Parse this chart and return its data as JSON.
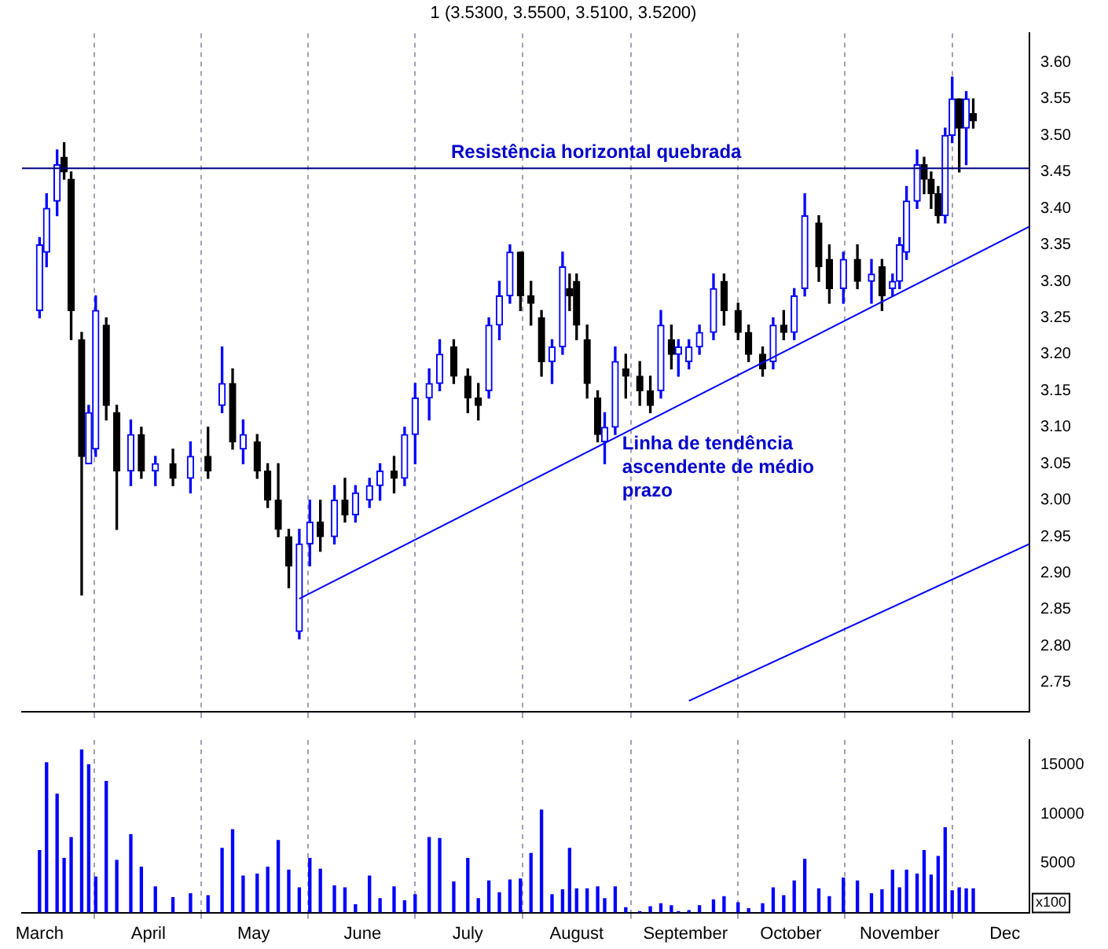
{
  "chart_data": [
    {
      "type": "candlestick",
      "title": "1 (3.5300, 3.5500, 3.5100, 3.5200)",
      "x": [
        "--03-01",
        "--03-03",
        "--03-06",
        "--03-08",
        "--03-10",
        "--03-13",
        "--03-15",
        "--03-17",
        "--03-20",
        "--03-23",
        "--03-27",
        "--03-30",
        "--04-03",
        "--04-08",
        "--04-13",
        "--04-18",
        "--04-22",
        "--04-25",
        "--04-28",
        "--05-02",
        "--05-05",
        "--05-08",
        "--05-11",
        "--05-14",
        "--05-17",
        "--05-20",
        "--05-24",
        "--05-27",
        "--05-30",
        "--06-03",
        "--06-06",
        "--06-10",
        "--06-13",
        "--06-16",
        "--06-20",
        "--06-23",
        "--06-27",
        "--07-01",
        "--07-04",
        "--07-07",
        "--07-10",
        "--07-13",
        "--07-16",
        "--07-19",
        "--07-22",
        "--07-25",
        "--07-28",
        "--07-30",
        "--08-01",
        "--08-04",
        "--08-07",
        "--08-09",
        "--08-12",
        "--08-15",
        "--08-19",
        "--08-22",
        "--08-25",
        "--08-28",
        "--08-30",
        "--09-02",
        "--09-05",
        "--09-09",
        "--09-12",
        "--09-16",
        "--09-19",
        "--09-23",
        "--09-26",
        "--09-29",
        "--10-02",
        "--10-05",
        "--10-09",
        "--10-12",
        "--10-16",
        "--10-20",
        "--10-24",
        "--10-27",
        "--10-30",
        "--11-01",
        "--11-03",
        "--11-06",
        "--11-08",
        "--11-10",
        "--11-12",
        "--11-14",
        "--11-16",
        "--11-18",
        "--11-20",
        "--11-22"
      ],
      "ohlc": [
        [
          3.26,
          3.36,
          3.25,
          3.35
        ],
        [
          3.34,
          3.42,
          3.32,
          3.4
        ],
        [
          3.41,
          3.48,
          3.39,
          3.46
        ],
        [
          3.47,
          3.49,
          3.44,
          3.45
        ],
        [
          3.44,
          3.45,
          3.22,
          3.26
        ],
        [
          3.22,
          3.23,
          2.87,
          3.06
        ],
        [
          3.05,
          3.13,
          3.05,
          3.12
        ],
        [
          3.07,
          3.28,
          3.06,
          3.26
        ],
        [
          3.24,
          3.25,
          3.11,
          3.13
        ],
        [
          3.12,
          3.13,
          2.96,
          3.04
        ],
        [
          3.04,
          3.11,
          3.02,
          3.09
        ],
        [
          3.09,
          3.1,
          3.03,
          3.04
        ],
        [
          3.04,
          3.06,
          3.02,
          3.05
        ],
        [
          3.05,
          3.07,
          3.02,
          3.03
        ],
        [
          3.03,
          3.08,
          3.01,
          3.06
        ],
        [
          3.06,
          3.1,
          3.03,
          3.04
        ],
        [
          3.13,
          3.21,
          3.12,
          3.16
        ],
        [
          3.16,
          3.18,
          3.07,
          3.08
        ],
        [
          3.07,
          3.11,
          3.05,
          3.09
        ],
        [
          3.08,
          3.09,
          3.03,
          3.04
        ],
        [
          3.04,
          3.05,
          2.99,
          3.0
        ],
        [
          3.0,
          3.05,
          2.95,
          2.96
        ],
        [
          2.95,
          2.96,
          2.88,
          2.91
        ],
        [
          2.82,
          2.96,
          2.81,
          2.94
        ],
        [
          2.94,
          3.0,
          2.91,
          2.97
        ],
        [
          2.97,
          3.0,
          2.93,
          2.95
        ],
        [
          2.95,
          3.02,
          2.94,
          3.0
        ],
        [
          3.0,
          3.03,
          2.97,
          2.98
        ],
        [
          2.98,
          3.02,
          2.97,
          3.01
        ],
        [
          3.0,
          3.03,
          2.99,
          3.02
        ],
        [
          3.02,
          3.05,
          3.0,
          3.04
        ],
        [
          3.04,
          3.06,
          3.01,
          3.03
        ],
        [
          3.03,
          3.1,
          3.02,
          3.09
        ],
        [
          3.09,
          3.16,
          3.05,
          3.14
        ],
        [
          3.14,
          3.18,
          3.11,
          3.16
        ],
        [
          3.16,
          3.22,
          3.15,
          3.2
        ],
        [
          3.21,
          3.22,
          3.16,
          3.17
        ],
        [
          3.17,
          3.18,
          3.12,
          3.14
        ],
        [
          3.14,
          3.16,
          3.11,
          3.13
        ],
        [
          3.15,
          3.25,
          3.14,
          3.24
        ],
        [
          3.24,
          3.3,
          3.22,
          3.28
        ],
        [
          3.28,
          3.35,
          3.27,
          3.34
        ],
        [
          3.34,
          3.34,
          3.26,
          3.28
        ],
        [
          3.28,
          3.3,
          3.24,
          3.27
        ],
        [
          3.25,
          3.26,
          3.17,
          3.19
        ],
        [
          3.19,
          3.22,
          3.16,
          3.21
        ],
        [
          3.21,
          3.34,
          3.2,
          3.32
        ],
        [
          3.29,
          3.31,
          3.26,
          3.28
        ],
        [
          3.3,
          3.31,
          3.22,
          3.24
        ],
        [
          3.22,
          3.24,
          3.14,
          3.16
        ],
        [
          3.14,
          3.15,
          3.08,
          3.09
        ],
        [
          3.08,
          3.12,
          3.05,
          3.1
        ],
        [
          3.1,
          3.21,
          3.09,
          3.19
        ],
        [
          3.18,
          3.2,
          3.14,
          3.17
        ],
        [
          3.17,
          3.19,
          3.13,
          3.15
        ],
        [
          3.15,
          3.17,
          3.12,
          3.13
        ],
        [
          3.15,
          3.26,
          3.14,
          3.24
        ],
        [
          3.22,
          3.24,
          3.18,
          3.2
        ],
        [
          3.2,
          3.22,
          3.17,
          3.21
        ],
        [
          3.19,
          3.22,
          3.18,
          3.21
        ],
        [
          3.21,
          3.24,
          3.2,
          3.23
        ],
        [
          3.23,
          3.31,
          3.22,
          3.29
        ],
        [
          3.3,
          3.31,
          3.24,
          3.26
        ],
        [
          3.26,
          3.27,
          3.22,
          3.23
        ],
        [
          3.23,
          3.24,
          3.19,
          3.2
        ],
        [
          3.2,
          3.21,
          3.17,
          3.18
        ],
        [
          3.19,
          3.25,
          3.18,
          3.24
        ],
        [
          3.24,
          3.26,
          3.22,
          3.23
        ],
        [
          3.23,
          3.29,
          3.22,
          3.28
        ],
        [
          3.29,
          3.42,
          3.28,
          3.39
        ],
        [
          3.38,
          3.39,
          3.3,
          3.32
        ],
        [
          3.33,
          3.35,
          3.27,
          3.29
        ],
        [
          3.29,
          3.34,
          3.27,
          3.33
        ],
        [
          3.33,
          3.35,
          3.29,
          3.3
        ],
        [
          3.3,
          3.33,
          3.27,
          3.31
        ],
        [
          3.32,
          3.33,
          3.26,
          3.28
        ],
        [
          3.29,
          3.31,
          3.28,
          3.3
        ],
        [
          3.3,
          3.36,
          3.29,
          3.35
        ],
        [
          3.34,
          3.43,
          3.33,
          3.41
        ],
        [
          3.41,
          3.48,
          3.4,
          3.46
        ],
        [
          3.46,
          3.47,
          3.42,
          3.44
        ],
        [
          3.44,
          3.45,
          3.4,
          3.42
        ],
        [
          3.42,
          3.43,
          3.38,
          3.39
        ],
        [
          3.39,
          3.51,
          3.38,
          3.5
        ],
        [
          3.5,
          3.58,
          3.49,
          3.55
        ],
        [
          3.55,
          3.55,
          3.45,
          3.51
        ],
        [
          3.51,
          3.56,
          3.46,
          3.55
        ],
        [
          3.53,
          3.55,
          3.51,
          3.52
        ]
      ],
      "colors": [
        "#0000ff",
        "#0000ff",
        "#0000ff",
        "#000000",
        "#000000",
        "#000000",
        "#0000ff",
        "#0000ff",
        "#000000",
        "#000000",
        "#0000ff",
        "#000000",
        "#0000ff",
        "#000000",
        "#0000ff",
        "#000000",
        "#0000ff",
        "#000000",
        "#0000ff",
        "#000000",
        "#000000",
        "#000000",
        "#000000",
        "#0000ff",
        "#0000ff",
        "#000000",
        "#0000ff",
        "#000000",
        "#0000ff",
        "#0000ff",
        "#0000ff",
        "#000000",
        "#0000ff",
        "#0000ff",
        "#0000ff",
        "#0000ff",
        "#000000",
        "#000000",
        "#000000",
        "#0000ff",
        "#0000ff",
        "#0000ff",
        "#000000",
        "#000000",
        "#000000",
        "#0000ff",
        "#0000ff",
        "#000000",
        "#000000",
        "#000000",
        "#000000",
        "#0000ff",
        "#0000ff",
        "#000000",
        "#000000",
        "#000000",
        "#0000ff",
        "#000000",
        "#0000ff",
        "#0000ff",
        "#0000ff",
        "#0000ff",
        "#000000",
        "#000000",
        "#000000",
        "#000000",
        "#0000ff",
        "#000000",
        "#0000ff",
        "#0000ff",
        "#000000",
        "#000000",
        "#0000ff",
        "#000000",
        "#0000ff",
        "#000000",
        "#0000ff",
        "#0000ff",
        "#0000ff",
        "#0000ff",
        "#000000",
        "#000000",
        "#000000",
        "#0000ff",
        "#0000ff",
        "#000000",
        "#0000ff",
        "#000000"
      ],
      "series": [
        {
          "type": "line",
          "color": "#0000ff",
          "x": [
            "--05-14",
            "--12-08"
          ],
          "values": [
            2.865,
            3.375
          ]
        },
        {
          "type": "line",
          "color": "#0000ff",
          "x": [
            "--09-02",
            "--12-08"
          ],
          "values": [
            2.725,
            2.94
          ]
        }
      ],
      "ref_lines": [
        {
          "axis": "y",
          "value": 3.455,
          "label": "Resistência horizontal quebrada",
          "color": "#000080"
        }
      ],
      "annotations": [
        {
          "text": "Linha de tendência ascendente de médio prazo",
          "x": "--08-14",
          "y": 3.09
        }
      ],
      "xlim": [
        "--02-24",
        "--12-08"
      ],
      "xticks": [
        {
          "value": "--03-01",
          "label": null
        },
        {
          "value": "--04-01",
          "label": null
        },
        {
          "value": "--05-01",
          "label": null
        },
        {
          "value": "--06-01",
          "label": null
        },
        {
          "value": "--07-01",
          "label": null
        },
        {
          "value": "--08-01",
          "label": null
        },
        {
          "value": "--09-01",
          "label": null
        },
        {
          "value": "--10-01",
          "label": null
        },
        {
          "value": "--11-01",
          "label": null
        },
        {
          "value": "--12-01",
          "label": null
        }
      ],
      "ylim": [
        2.71,
        3.64
      ],
      "yticks": [
        {
          "value": 2.75,
          "label": "2.75"
        },
        {
          "value": 2.8,
          "label": "2.80"
        },
        {
          "value": 2.85,
          "label": "2.85"
        },
        {
          "value": 2.9,
          "label": "2.90"
        },
        {
          "value": 2.95,
          "label": "2.95"
        },
        {
          "value": 3.0,
          "label": "3.00"
        },
        {
          "value": 3.05,
          "label": "3.05"
        },
        {
          "value": 3.1,
          "label": "3.10"
        },
        {
          "value": 3.15,
          "label": "3.15"
        },
        {
          "value": 3.2,
          "label": "3.20"
        },
        {
          "value": 3.25,
          "label": "3.25"
        },
        {
          "value": 3.3,
          "label": "3.30"
        },
        {
          "value": 3.35,
          "label": "3.35"
        },
        {
          "value": 3.4,
          "label": "3.40"
        },
        {
          "value": 3.45,
          "label": "3.45"
        },
        {
          "value": 3.5,
          "label": "3.50"
        },
        {
          "value": 3.55,
          "label": "3.55"
        },
        {
          "value": 3.6,
          "label": "3.60"
        }
      ],
      "grid": "x",
      "tick_labels": "y"
    },
    {
      "type": "bar",
      "color": "#0000ff",
      "x": [
        "--03-01",
        "--03-03",
        "--03-06",
        "--03-08",
        "--03-10",
        "--03-13",
        "--03-15",
        "--03-17",
        "--03-20",
        "--03-23",
        "--03-27",
        "--03-30",
        "--04-03",
        "--04-08",
        "--04-13",
        "--04-18",
        "--04-22",
        "--04-25",
        "--04-28",
        "--05-02",
        "--05-05",
        "--05-08",
        "--05-11",
        "--05-14",
        "--05-17",
        "--05-20",
        "--05-24",
        "--05-27",
        "--05-30",
        "--06-03",
        "--06-06",
        "--06-10",
        "--06-13",
        "--06-16",
        "--06-20",
        "--06-23",
        "--06-27",
        "--07-01",
        "--07-04",
        "--07-07",
        "--07-10",
        "--07-13",
        "--07-16",
        "--07-19",
        "--07-22",
        "--07-25",
        "--07-28",
        "--07-30",
        "--08-01",
        "--08-04",
        "--08-07",
        "--08-09",
        "--08-12",
        "--08-15",
        "--08-19",
        "--08-22",
        "--08-25",
        "--08-28",
        "--08-30",
        "--09-02",
        "--09-05",
        "--09-09",
        "--09-12",
        "--09-16",
        "--09-19",
        "--09-23",
        "--09-26",
        "--09-29",
        "--10-02",
        "--10-05",
        "--10-09",
        "--10-12",
        "--10-16",
        "--10-20",
        "--10-24",
        "--10-27",
        "--10-30",
        "--11-01",
        "--11-03",
        "--11-06",
        "--11-08",
        "--11-10",
        "--11-12",
        "--11-14",
        "--11-16",
        "--11-18",
        "--11-20",
        "--11-22"
      ],
      "values": [
        6300,
        15200,
        12000,
        5500,
        7600,
        16500,
        15000,
        3600,
        13300,
        5300,
        7900,
        4600,
        2600,
        1500,
        1900,
        1700,
        6500,
        8400,
        3700,
        3900,
        4600,
        7300,
        4300,
        2500,
        5500,
        4400,
        2700,
        2500,
        800,
        3700,
        1400,
        2600,
        1200,
        1800,
        7600,
        7500,
        3100,
        5500,
        1400,
        3200,
        2000,
        3300,
        3400,
        6000,
        10400,
        1800,
        2300,
        6500,
        2400,
        2400,
        2600,
        1400,
        2600,
        500,
        100,
        600,
        900,
        700,
        100,
        200,
        700,
        1300,
        1600,
        1000,
        400,
        900,
        2500,
        1700,
        3200,
        5400,
        2400,
        1600,
        3500,
        3200,
        1900,
        2300,
        4300,
        2500,
        4300,
        3900,
        6300,
        3800,
        5700,
        8600,
        2200,
        2500,
        2400,
        2400
      ],
      "annotations": [
        "x100"
      ],
      "xlim": [
        "--02-24",
        "--12-08"
      ],
      "xticks": [
        {
          "value": "--03-01",
          "label": "March"
        },
        {
          "value": "--04-01",
          "label": "April"
        },
        {
          "value": "--05-01",
          "label": "May"
        },
        {
          "value": "--06-01",
          "label": "June"
        },
        {
          "value": "--07-01",
          "label": "July"
        },
        {
          "value": "--08-01",
          "label": "August"
        },
        {
          "value": "--09-01",
          "label": "September"
        },
        {
          "value": "--10-01",
          "label": "October"
        },
        {
          "value": "--11-01",
          "label": "November"
        },
        {
          "value": "--12-01",
          "label": "Dec"
        }
      ],
      "ylim": [
        0,
        17500
      ],
      "yticks": [
        5000,
        10000,
        15000
      ],
      "grid": "x"
    }
  ]
}
